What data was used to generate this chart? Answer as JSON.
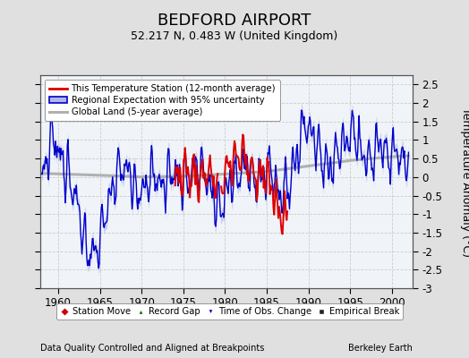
{
  "title": "BEDFORD AIRPORT",
  "subtitle": "52.217 N, 0.483 W (United Kingdom)",
  "ylabel": "Temperature Anomaly (°C)",
  "ylim": [
    -3.0,
    2.75
  ],
  "xlim": [
    1957.8,
    2002.5
  ],
  "yticks": [
    -3,
    -2.5,
    -2,
    -1.5,
    -1,
    -0.5,
    0,
    0.5,
    1,
    1.5,
    2,
    2.5
  ],
  "xticks": [
    1960,
    1965,
    1970,
    1975,
    1980,
    1985,
    1990,
    1995,
    2000
  ],
  "footer_left": "Data Quality Controlled and Aligned at Breakpoints",
  "footer_right": "Berkeley Earth",
  "legend1_labels": [
    "This Temperature Station (12-month average)",
    "Regional Expectation with 95% uncertainty",
    "Global Land (5-year average)"
  ],
  "legend2_labels": [
    "Station Move",
    "Record Gap",
    "Time of Obs. Change",
    "Empirical Break"
  ],
  "fig_bg_color": "#e0e0e0",
  "plot_bg_color": "#f0f4f8",
  "grid_color": "#cccccc",
  "station_color": "#dd0000",
  "regional_color": "#0000cc",
  "regional_fill_color": "#b0b8e8",
  "global_color": "#b0b0b0",
  "title_fontsize": 13,
  "subtitle_fontsize": 9,
  "axis_fontsize": 8.5,
  "ylabel_fontsize": 9,
  "title_fontweight": "normal"
}
